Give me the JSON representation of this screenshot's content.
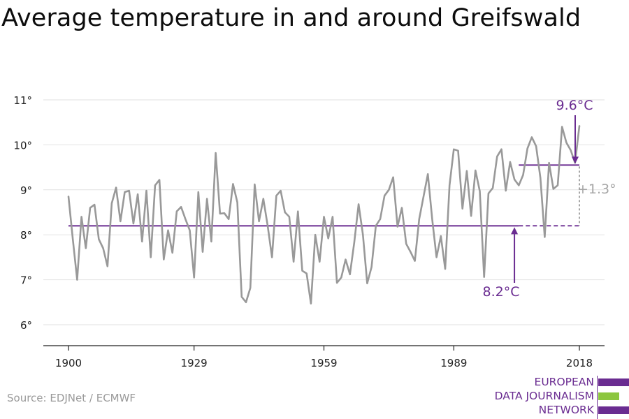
{
  "title": "Average temperature in and around Greifswald",
  "source": "Source: EDJNet / ECMWF",
  "logo": {
    "line1": "EUROPEAN",
    "line2": "DATA JOURNALISM",
    "line3": "NETWORK",
    "colors": [
      "#6a2c91",
      "#8cc63f",
      "#6a2c91"
    ]
  },
  "chart_data": {
    "type": "line",
    "title": "Average temperature in and around Greifswald",
    "xlabel": "",
    "ylabel": "",
    "xlim": [
      1900,
      2018
    ],
    "ylim": [
      5.5,
      11.3
    ],
    "xticks": [
      "1900",
      "1929",
      "1959",
      "1989",
      "2018"
    ],
    "yticks": [
      "6°",
      "7°",
      "8°",
      "9°",
      "10°",
      "11°"
    ],
    "line_color": "#999999",
    "accent_color": "#6a2c91",
    "x": [
      1900,
      1901,
      1902,
      1903,
      1904,
      1905,
      1906,
      1907,
      1908,
      1909,
      1910,
      1911,
      1912,
      1913,
      1914,
      1915,
      1916,
      1917,
      1918,
      1919,
      1920,
      1921,
      1922,
      1923,
      1924,
      1925,
      1926,
      1927,
      1928,
      1929,
      1930,
      1931,
      1932,
      1933,
      1934,
      1935,
      1936,
      1937,
      1938,
      1939,
      1940,
      1941,
      1942,
      1943,
      1944,
      1945,
      1946,
      1947,
      1948,
      1949,
      1950,
      1951,
      1952,
      1953,
      1954,
      1955,
      1956,
      1957,
      1958,
      1959,
      1960,
      1961,
      1962,
      1963,
      1964,
      1965,
      1966,
      1967,
      1968,
      1969,
      1970,
      1971,
      1972,
      1973,
      1974,
      1975,
      1976,
      1977,
      1978,
      1979,
      1980,
      1981,
      1982,
      1983,
      1984,
      1985,
      1986,
      1987,
      1988,
      1989,
      1990,
      1991,
      1992,
      1993,
      1994,
      1995,
      1996,
      1997,
      1998,
      1999,
      2000,
      2001,
      2002,
      2003,
      2004,
      2005,
      2006,
      2007,
      2008,
      2009,
      2010,
      2011,
      2012,
      2013,
      2014,
      2015,
      2016,
      2017,
      2018
    ],
    "values": [
      8.85,
      7.9,
      7.0,
      8.4,
      7.7,
      8.6,
      8.67,
      7.9,
      7.7,
      7.3,
      8.7,
      9.05,
      8.3,
      8.95,
      8.98,
      8.25,
      8.9,
      7.85,
      8.98,
      7.5,
      9.1,
      9.22,
      7.45,
      8.1,
      7.6,
      8.52,
      8.62,
      8.35,
      8.1,
      7.05,
      8.95,
      7.62,
      8.8,
      7.85,
      9.82,
      8.47,
      8.48,
      8.35,
      9.13,
      8.72,
      6.62,
      6.5,
      6.82,
      9.12,
      8.3,
      8.8,
      8.2,
      7.5,
      8.87,
      8.98,
      8.5,
      8.4,
      7.4,
      8.52,
      7.2,
      7.14,
      6.47,
      8.0,
      7.4,
      8.4,
      7.92,
      8.4,
      6.93,
      7.05,
      7.45,
      7.12,
      7.83,
      8.68,
      8.0,
      6.92,
      7.28,
      8.2,
      8.35,
      8.87,
      9.0,
      9.28,
      8.18,
      8.6,
      7.8,
      7.62,
      7.42,
      8.35,
      8.85,
      9.35,
      8.35,
      7.5,
      7.97,
      7.24,
      9.1,
      9.9,
      9.87,
      8.58,
      9.42,
      8.42,
      9.43,
      8.97,
      7.06,
      8.92,
      9.04,
      9.74,
      9.9,
      8.98,
      9.62,
      9.23,
      9.1,
      9.33,
      9.92,
      10.17,
      9.97,
      9.27,
      7.95,
      9.6,
      9.02,
      9.1,
      10.4,
      10.05,
      9.88,
      9.6,
      10.42
    ],
    "annotations": {
      "baseline": {
        "value": 8.2,
        "label": "8.2°C",
        "x_start": 1900,
        "x_end": 2004,
        "dashed_to": 2018,
        "arrow_year": 2003
      },
      "recent": {
        "value": 9.55,
        "label": "9.6°C",
        "x_start": 2004,
        "x_end": 2018,
        "arrow_year": 2018
      },
      "difference": {
        "label": "+1.3°",
        "x": 2018
      }
    },
    "grid": true
  }
}
